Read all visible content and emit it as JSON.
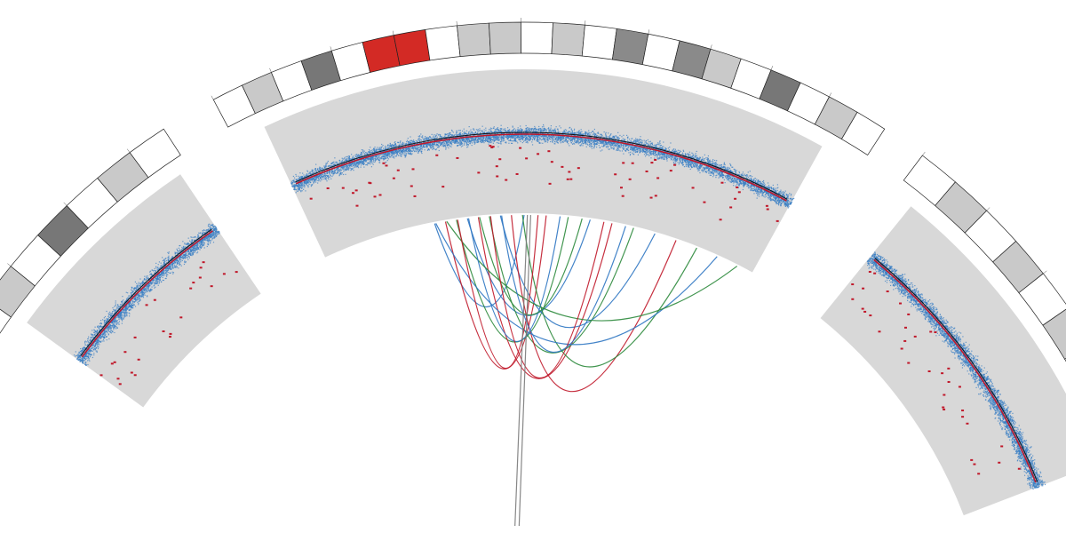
{
  "chart_data": {
    "type": "circos",
    "title": "",
    "tracks": [
      "ideogram",
      "copy_number_scatter",
      "segment_mean",
      "structural_variant_links"
    ],
    "colors": {
      "track_background": "#d8d8d8",
      "points": "#3a7fc4",
      "segment_mean": "#c0182a",
      "baseline": "#111111",
      "highlight_band": "#d32a25",
      "band_light": "#c9c9c9",
      "band_mid": "#8a8a8a",
      "band_dark": "#777777",
      "band_black": "#000000",
      "link_blue": "#2e75c2",
      "link_green": "#2c8a3c",
      "link_red": "#c0182a",
      "link_gray": "#7a7a7a"
    },
    "chromosome_segments": [
      {
        "id": "left",
        "bands": [
          "white",
          "light",
          "white",
          "dark",
          "white",
          "light",
          "white"
        ]
      },
      {
        "id": "top",
        "bands": [
          "white",
          "light",
          "white",
          "dark",
          "white",
          "red",
          "red",
          "white",
          "light",
          "light",
          "white",
          "light",
          "white",
          "mid",
          "white",
          "mid",
          "light",
          "white",
          "dark",
          "white",
          "light",
          "white"
        ]
      },
      {
        "id": "right",
        "bands": [
          "white",
          "light",
          "white",
          "light",
          "white",
          "light",
          "white",
          "black",
          "white"
        ]
      }
    ],
    "links": [
      {
        "color": "blue"
      },
      {
        "color": "red"
      },
      {
        "color": "green"
      },
      {
        "color": "blue"
      },
      {
        "color": "red"
      },
      {
        "color": "green"
      },
      {
        "color": "blue"
      },
      {
        "color": "red"
      },
      {
        "color": "green"
      },
      {
        "color": "blue"
      },
      {
        "color": "green"
      },
      {
        "color": "red"
      },
      {
        "color": "blue"
      },
      {
        "color": "green"
      },
      {
        "color": "red"
      },
      {
        "color": "blue"
      },
      {
        "color": "gray"
      },
      {
        "color": "gray"
      }
    ]
  }
}
